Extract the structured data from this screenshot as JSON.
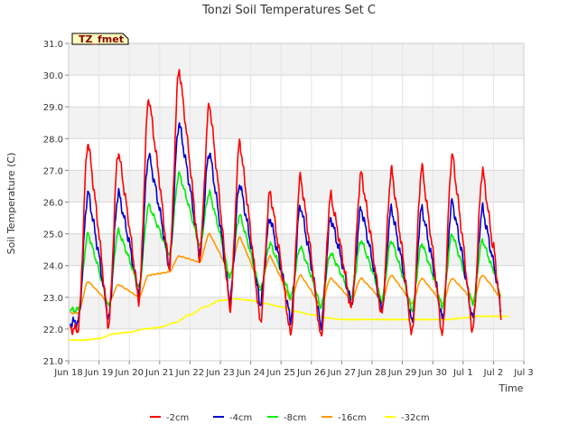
{
  "chart_data": {
    "type": "line",
    "title": "Tonzi Soil Temperatures Set C",
    "xlabel": "Time",
    "ylabel": "Soil Temperature (C)",
    "annotation": "TZ_fmet",
    "ylim": [
      21.0,
      31.0
    ],
    "yticks": [
      "21.0",
      "22.0",
      "23.0",
      "24.0",
      "25.0",
      "26.0",
      "27.0",
      "28.0",
      "29.0",
      "30.0",
      "31.0"
    ],
    "xlim": [
      0,
      15
    ],
    "xticks": [
      "Jun 18",
      "Jun 19",
      "Jun 20",
      "Jun 21",
      "Jun 22",
      "Jun 23",
      "Jun 24",
      "Jun 25",
      "Jun 26",
      "Jun 27",
      "Jun 28",
      "Jun 29",
      "Jun 30",
      "Jul 1",
      "Jul 2",
      "Jul 3"
    ],
    "grid": true,
    "legend_position": "bottom",
    "series": [
      {
        "name": "-2cm",
        "color": "#ff0000",
        "min": [
          22.0,
          22.1,
          22.9,
          23.9,
          24.2,
          22.6,
          22.2,
          21.8,
          21.7,
          22.6,
          22.4,
          21.8,
          21.8,
          21.9
        ],
        "max": [
          27.9,
          27.6,
          29.3,
          30.2,
          29.1,
          27.9,
          26.3,
          26.8,
          26.2,
          26.9,
          27.0,
          27.1,
          27.5,
          27.0
        ]
      },
      {
        "name": "-4cm",
        "color": "#0000cc",
        "min": [
          22.2,
          22.3,
          23.1,
          24.0,
          24.4,
          22.9,
          22.8,
          22.3,
          22.1,
          22.8,
          22.6,
          22.2,
          22.3,
          22.3
        ],
        "max": [
          26.3,
          26.3,
          27.5,
          28.5,
          27.6,
          26.6,
          25.5,
          25.9,
          25.5,
          25.8,
          25.8,
          25.8,
          26.0,
          25.8
        ]
      },
      {
        "name": "-8cm",
        "color": "#00ee00",
        "min": [
          22.6,
          22.7,
          23.3,
          24.3,
          24.6,
          23.6,
          23.2,
          23.0,
          22.7,
          23.0,
          22.9,
          22.6,
          22.7,
          22.8
        ],
        "max": [
          25.0,
          25.1,
          25.9,
          26.9,
          26.3,
          25.6,
          24.7,
          24.6,
          24.4,
          24.8,
          24.8,
          24.7,
          25.0,
          24.8
        ]
      },
      {
        "name": "-16cm",
        "color": "#ff9900",
        "min": [
          22.5,
          22.8,
          23.0,
          23.8,
          24.1,
          23.7,
          23.3,
          22.9,
          22.7,
          22.9,
          22.9,
          22.8,
          22.8,
          22.9
        ],
        "max": [
          23.5,
          23.4,
          23.7,
          24.3,
          25.0,
          24.9,
          24.3,
          23.7,
          23.6,
          23.6,
          23.7,
          23.6,
          23.6,
          23.7
        ]
      },
      {
        "name": "-32cm",
        "color": "#ffff00",
        "x": [
          0,
          0.5,
          1,
          1.5,
          2,
          2.5,
          3,
          3.5,
          4,
          4.5,
          5,
          5.5,
          6,
          6.5,
          7,
          7.5,
          8,
          8.5,
          9,
          9.5,
          10,
          10.5,
          11,
          11.5,
          12,
          12.5,
          13,
          13.5,
          14,
          14.5
        ],
        "values": [
          21.65,
          21.65,
          21.7,
          21.85,
          21.9,
          22.0,
          22.05,
          22.2,
          22.45,
          22.7,
          22.9,
          22.95,
          22.9,
          22.8,
          22.7,
          22.55,
          22.45,
          22.35,
          22.3,
          22.3,
          22.3,
          22.3,
          22.3,
          22.3,
          22.3,
          22.3,
          22.35,
          22.4,
          22.4,
          22.4
        ]
      }
    ]
  }
}
